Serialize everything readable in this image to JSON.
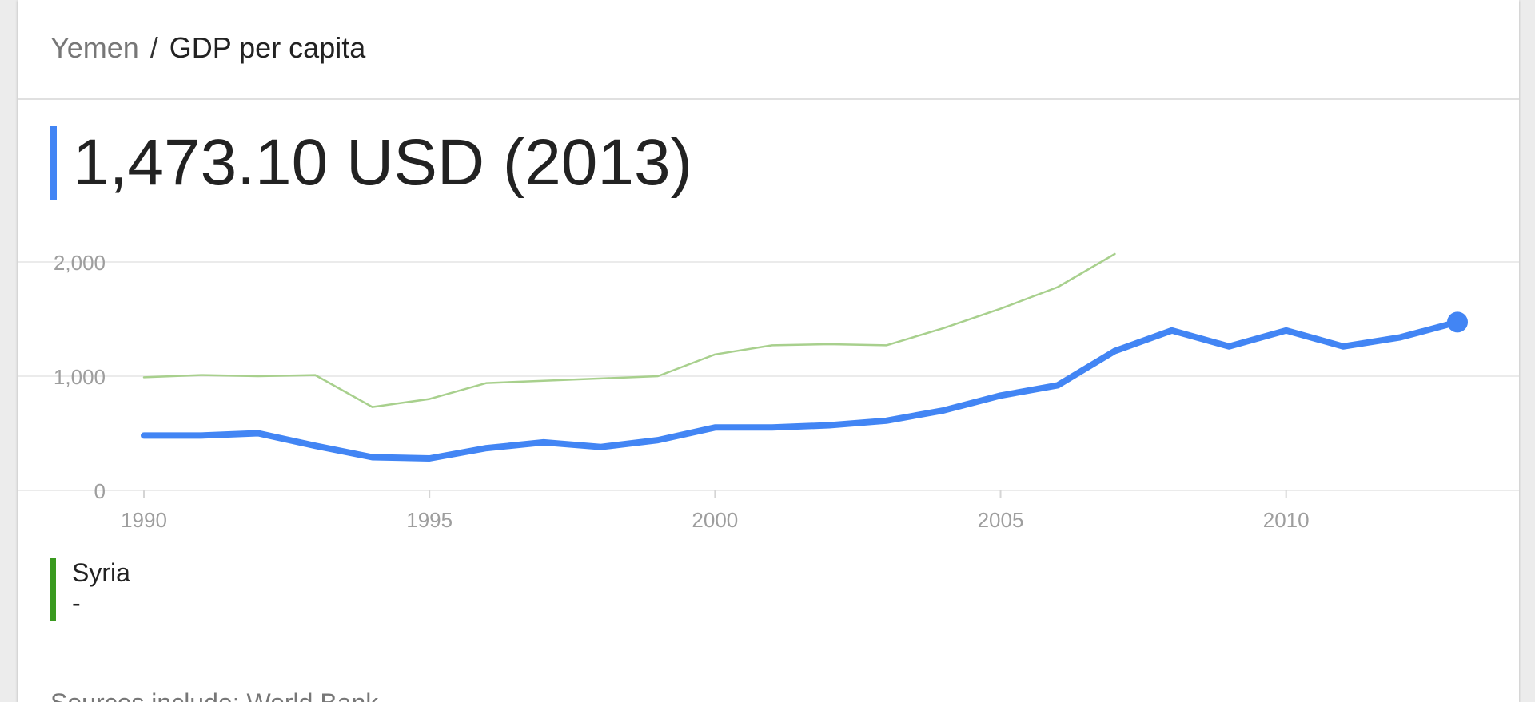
{
  "breadcrumb": {
    "country": "Yemen",
    "separator": "/",
    "metric": "GDP per capita"
  },
  "headline": {
    "value": "1,473.10 USD (2013)",
    "accent_color": "#4285f4"
  },
  "legend": {
    "name": "Syria",
    "value": "-",
    "color": "#3a9a1f"
  },
  "sources": "Sources include: World Bank",
  "chart_data": {
    "type": "line",
    "title": "",
    "xlabel": "",
    "ylabel": "",
    "xlim": [
      1990,
      2013
    ],
    "ylim": [
      0,
      2000
    ],
    "grid": true,
    "x_ticks": [
      1990,
      1995,
      2000,
      2005,
      2010
    ],
    "x_tick_labels": [
      "1990",
      "1995",
      "2000",
      "2005",
      "2010"
    ],
    "y_ticks": [
      0,
      1000,
      2000
    ],
    "y_tick_labels": [
      "0",
      "1,000",
      "2,000"
    ],
    "series": [
      {
        "name": "Syria",
        "color": "#a8d08d",
        "x": [
          1990,
          1991,
          1992,
          1993,
          1994,
          1995,
          1996,
          1997,
          1998,
          1999,
          2000,
          2001,
          2002,
          2003,
          2004,
          2005,
          2006,
          2007
        ],
        "values": [
          990,
          1010,
          1000,
          1010,
          730,
          800,
          940,
          960,
          980,
          1000,
          1190,
          1270,
          1280,
          1270,
          1420,
          1590,
          1780,
          2070
        ]
      },
      {
        "name": "Yemen",
        "color": "#4285f4",
        "x": [
          1990,
          1991,
          1992,
          1993,
          1994,
          1995,
          1996,
          1997,
          1998,
          1999,
          2000,
          2001,
          2002,
          2003,
          2004,
          2005,
          2006,
          2007,
          2008,
          2009,
          2010,
          2011,
          2012,
          2013
        ],
        "values": [
          480,
          480,
          500,
          390,
          290,
          280,
          370,
          420,
          380,
          440,
          550,
          550,
          570,
          610,
          700,
          830,
          920,
          1220,
          1400,
          1260,
          1400,
          1260,
          1340,
          1473.1
        ],
        "highlight_last": true
      }
    ]
  }
}
